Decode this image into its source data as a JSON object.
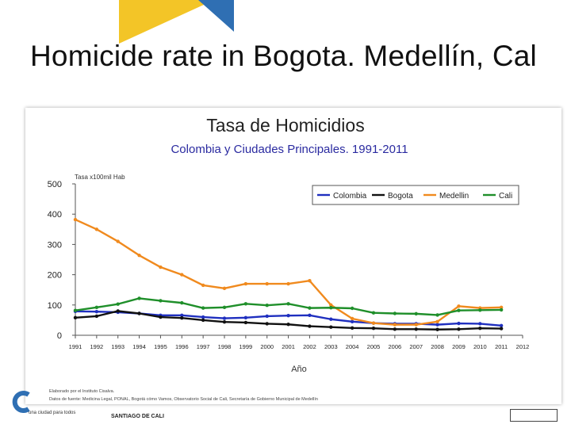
{
  "slide": {
    "title": "Homicide rate in Bogota. Medellín, Cal",
    "footer": {
      "tagline": "una ciudad para todos",
      "org": "SANTIAGO DE CALI"
    },
    "colors": {
      "yellow": "#f2c21b",
      "blue": "#2f6fb3"
    }
  },
  "chart_data": {
    "type": "line",
    "title": "Tasa de Homicidios",
    "subtitle": "Colombia y Ciudades Principales. 1991-2011",
    "ylabel": "Tasa x100mil Hab",
    "xlabel": "Año",
    "ylim": [
      0,
      500
    ],
    "xlim": [
      1991,
      2012
    ],
    "yticks": [
      0,
      100,
      200,
      300,
      400,
      500
    ],
    "xticks": [
      1991,
      1992,
      1993,
      1994,
      1995,
      1996,
      1997,
      1998,
      1999,
      2000,
      2001,
      2002,
      2003,
      2004,
      2005,
      2006,
      2007,
      2008,
      2009,
      2010,
      2011,
      2012
    ],
    "x": [
      1991,
      1992,
      1993,
      1994,
      1995,
      1996,
      1997,
      1998,
      1999,
      2000,
      2001,
      2002,
      2003,
      2004,
      2005,
      2006,
      2007,
      2008,
      2009,
      2010,
      2011
    ],
    "legend_position": "top-right",
    "series": [
      {
        "name": "Colombia",
        "color": "#1f2fbf",
        "values": [
          79,
          78,
          76,
          72,
          66,
          66,
          60,
          56,
          58,
          63,
          65,
          66,
          53,
          45,
          40,
          38,
          38,
          35,
          39,
          38,
          32
        ]
      },
      {
        "name": "Bogota",
        "color": "#111111",
        "values": [
          58,
          63,
          80,
          72,
          60,
          57,
          50,
          44,
          42,
          38,
          36,
          30,
          27,
          24,
          23,
          20,
          20,
          19,
          20,
          23,
          22
        ]
      },
      {
        "name": "Medellin",
        "color": "#f08a1e",
        "values": [
          382,
          350,
          310,
          264,
          225,
          200,
          165,
          155,
          170,
          170,
          170,
          180,
          100,
          55,
          40,
          35,
          35,
          45,
          96,
          90,
          92
        ]
      },
      {
        "name": "Cali",
        "color": "#1f8f2a",
        "values": [
          82,
          92,
          103,
          122,
          114,
          107,
          90,
          92,
          104,
          99,
          104,
          90,
          91,
          89,
          74,
          72,
          71,
          67,
          82,
          83,
          84
        ]
      }
    ],
    "notes": [
      "Elaborado por el Instituto Cisalva.",
      "Datos de fuente: Medicina Legal, PONAL, Bogotá cómo Vamos, Observatorio Social de Cali, Secretaría de Gobierno Municipal de Medellín"
    ]
  }
}
